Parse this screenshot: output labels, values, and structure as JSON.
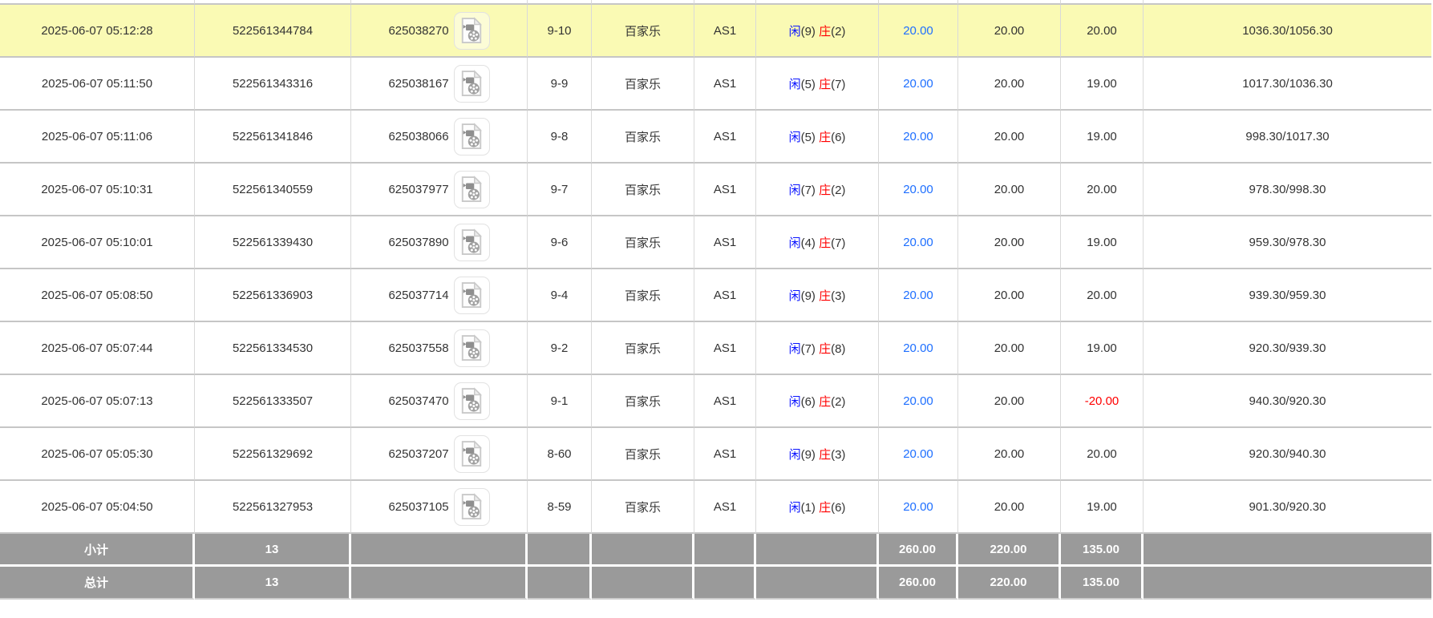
{
  "colors": {
    "highlight_row_bg": "#FAFAB4",
    "summary_row_bg": "#9A9A9A",
    "link_blue": "#1E6FFF",
    "player_blue": "#0A14FF",
    "banker_red": "#FF0000",
    "negative_red": "#FF0000",
    "text": "#333333"
  },
  "icons": {
    "record_action": "video-file-icon"
  },
  "labels": {
    "player": "闲",
    "banker": "庄"
  },
  "table": {
    "rows": [
      {
        "time": "2025-06-07 05:12:28",
        "bet_id": "522561344784",
        "game_number": "625038270",
        "round": "9-10",
        "game": "百家乐",
        "table": "AS1",
        "player_score": "9",
        "banker_score": "2",
        "bet_amount": "20.00",
        "valid_amount": "20.00",
        "win_loss": "20.00",
        "balance": "1036.30/1056.30",
        "highlighted": true
      },
      {
        "time": "2025-06-07 05:11:50",
        "bet_id": "522561343316",
        "game_number": "625038167",
        "round": "9-9",
        "game": "百家乐",
        "table": "AS1",
        "player_score": "5",
        "banker_score": "7",
        "bet_amount": "20.00",
        "valid_amount": "20.00",
        "win_loss": "19.00",
        "balance": "1017.30/1036.30",
        "highlighted": false
      },
      {
        "time": "2025-06-07 05:11:06",
        "bet_id": "522561341846",
        "game_number": "625038066",
        "round": "9-8",
        "game": "百家乐",
        "table": "AS1",
        "player_score": "5",
        "banker_score": "6",
        "bet_amount": "20.00",
        "valid_amount": "20.00",
        "win_loss": "19.00",
        "balance": "998.30/1017.30",
        "highlighted": false
      },
      {
        "time": "2025-06-07 05:10:31",
        "bet_id": "522561340559",
        "game_number": "625037977",
        "round": "9-7",
        "game": "百家乐",
        "table": "AS1",
        "player_score": "7",
        "banker_score": "2",
        "bet_amount": "20.00",
        "valid_amount": "20.00",
        "win_loss": "20.00",
        "balance": "978.30/998.30",
        "highlighted": false
      },
      {
        "time": "2025-06-07 05:10:01",
        "bet_id": "522561339430",
        "game_number": "625037890",
        "round": "9-6",
        "game": "百家乐",
        "table": "AS1",
        "player_score": "4",
        "banker_score": "7",
        "bet_amount": "20.00",
        "valid_amount": "20.00",
        "win_loss": "19.00",
        "balance": "959.30/978.30",
        "highlighted": false
      },
      {
        "time": "2025-06-07 05:08:50",
        "bet_id": "522561336903",
        "game_number": "625037714",
        "round": "9-4",
        "game": "百家乐",
        "table": "AS1",
        "player_score": "9",
        "banker_score": "3",
        "bet_amount": "20.00",
        "valid_amount": "20.00",
        "win_loss": "20.00",
        "balance": "939.30/959.30",
        "highlighted": false
      },
      {
        "time": "2025-06-07 05:07:44",
        "bet_id": "522561334530",
        "game_number": "625037558",
        "round": "9-2",
        "game": "百家乐",
        "table": "AS1",
        "player_score": "7",
        "banker_score": "8",
        "bet_amount": "20.00",
        "valid_amount": "20.00",
        "win_loss": "19.00",
        "balance": "920.30/939.30",
        "highlighted": false
      },
      {
        "time": "2025-06-07 05:07:13",
        "bet_id": "522561333507",
        "game_number": "625037470",
        "round": "9-1",
        "game": "百家乐",
        "table": "AS1",
        "player_score": "6",
        "banker_score": "2",
        "bet_amount": "20.00",
        "valid_amount": "20.00",
        "win_loss": "-20.00",
        "balance": "940.30/920.30",
        "highlighted": false
      },
      {
        "time": "2025-06-07 05:05:30",
        "bet_id": "522561329692",
        "game_number": "625037207",
        "round": "8-60",
        "game": "百家乐",
        "table": "AS1",
        "player_score": "9",
        "banker_score": "3",
        "bet_amount": "20.00",
        "valid_amount": "20.00",
        "win_loss": "20.00",
        "balance": "920.30/940.30",
        "highlighted": false
      },
      {
        "time": "2025-06-07 05:04:50",
        "bet_id": "522561327953",
        "game_number": "625037105",
        "round": "8-59",
        "game": "百家乐",
        "table": "AS1",
        "player_score": "1",
        "banker_score": "6",
        "bet_amount": "20.00",
        "valid_amount": "20.00",
        "win_loss": "19.00",
        "balance": "901.30/920.30",
        "highlighted": false
      }
    ],
    "summary": {
      "subtotal": {
        "label": "小计",
        "count": "13",
        "bet_amount": "260.00",
        "valid_amount": "220.00",
        "win_loss": "135.00"
      },
      "total": {
        "label": "总计",
        "count": "13",
        "bet_amount": "260.00",
        "valid_amount": "220.00",
        "win_loss": "135.00"
      }
    }
  }
}
